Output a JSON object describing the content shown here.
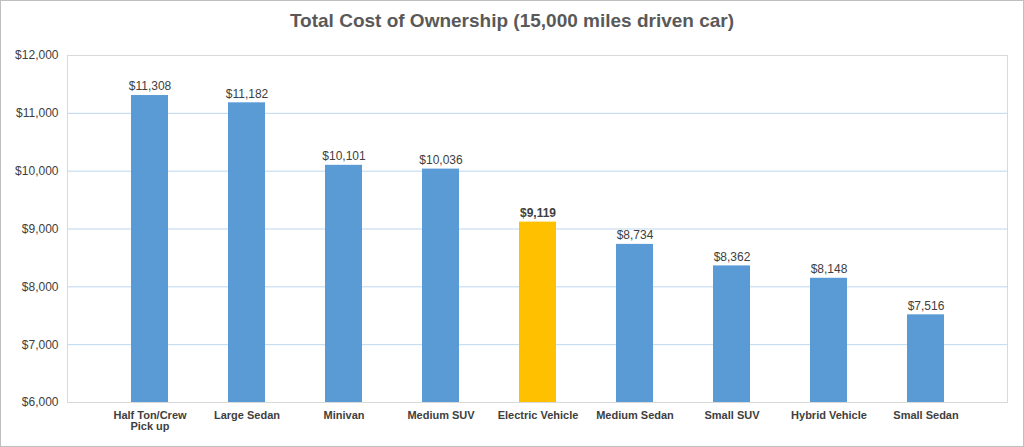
{
  "chart_data": {
    "type": "bar",
    "title": "Total Cost of Ownership (15,000 miles driven car)",
    "categories": [
      "Half Ton/Crew Pick up",
      "Large Sedan",
      "Minivan",
      "Medium SUV",
      "Electric Vehicle",
      "Medium Sedan",
      "Small SUV",
      "Hybrid Vehicle",
      "Small Sedan"
    ],
    "values": [
      11308,
      11182,
      10101,
      10036,
      9119,
      8734,
      8362,
      8148,
      7516
    ],
    "value_labels": [
      "$11,308",
      "$11,182",
      "$10,101",
      "$10,036",
      "$9,119",
      "$8,734",
      "$8,362",
      "$8,148",
      "$7,516"
    ],
    "colors": [
      "#5b9bd5",
      "#5b9bd5",
      "#5b9bd5",
      "#5b9bd5",
      "#ffc000",
      "#5b9bd5",
      "#5b9bd5",
      "#5b9bd5",
      "#5b9bd5"
    ],
    "ylim": [
      6000,
      12000
    ],
    "yticks": [
      {
        "value": 6000,
        "label": "$6,000"
      },
      {
        "value": 7000,
        "label": "$7,000"
      },
      {
        "value": 8000,
        "label": "$8,000"
      },
      {
        "value": 9000,
        "label": "$9,000"
      },
      {
        "value": 10000,
        "label": "$10,000"
      },
      {
        "value": 11000,
        "label": "$11,000"
      },
      {
        "value": 12000,
        "label": "$12,000"
      }
    ],
    "grid": true,
    "data_labels": true
  }
}
